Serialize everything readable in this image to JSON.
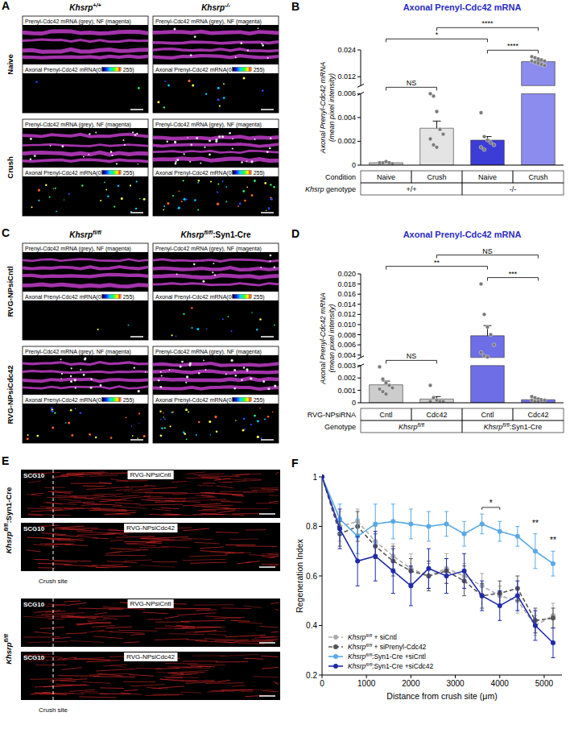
{
  "images": [
    {
      "panel": "A",
      "columns": [
        "Khsrp+/+",
        "Khsrp-/-"
      ],
      "rows": [
        "Naive",
        "Crush"
      ],
      "top_label": "Prenyl-Cdc42 mRNA (grey), NF (magenta)",
      "bottom_label": "Axonal Prenyl-Cdc42 mRNA(0",
      "bottom_label_end": "255)"
    },
    {
      "panel": "C",
      "columns": [
        "Khsrpfl/fl",
        "Khsrpfl/fl:Syn1-Cre"
      ],
      "rows": [
        "RVG-NPsiCntl",
        "RVG-NPsiCdc42"
      ],
      "top_label": "Prenyl-Cdc42 mRNA (grey), NF (magenta)",
      "bottom_label": "Axonal Prenyl-Cdc42 mRNA(0",
      "bottom_label_end": "255)"
    },
    {
      "panel": "E",
      "groups": [
        "Khsrpfl/fl:Syn1-Cre",
        "Khsrpfl/fl"
      ],
      "rows": [
        "RVG-NPsiCntl",
        "RVG-NPsiCdc42"
      ],
      "stain": "SCG10",
      "marker_label": "Crush site"
    }
  ],
  "chart_data": [
    {
      "type": "bar",
      "panel": "B",
      "title": "Axonal Prenyl-Cdc42 mRNA",
      "ylabel": "Axonal Prenyl-Cdc42 mRNA",
      "ylabel_note": "(mean pixel intensity)",
      "categories": [
        "Naive",
        "Crush",
        "Naive",
        "Crush"
      ],
      "category_row_label": "Condition",
      "group_row_label": "Khsrp genotype",
      "groups": [
        "+/+",
        "-/-"
      ],
      "values": [
        0.0002,
        0.0031,
        0.0021,
        0.0188
      ],
      "errors": [
        0.0001,
        0.0006,
        0.0003,
        0.0004
      ],
      "points": [
        [
          0.0001,
          0.0002,
          0.0003,
          0.0002,
          0.0001,
          0.0002
        ],
        [
          0.006,
          0.0058,
          0.0045,
          0.003,
          0.0026,
          0.0022,
          0.0017,
          0.0015
        ],
        [
          0.0044,
          0.0024,
          0.0021,
          0.0019,
          0.0017,
          0.0015,
          0.0013
        ],
        [
          0.021,
          0.0205,
          0.02,
          0.0195,
          0.019,
          0.019,
          0.0185,
          0.018,
          0.0175,
          0.017
        ]
      ],
      "colors": [
        "#cccccc",
        "#e4e4e4",
        "#3c3cd6",
        "#8c8cee"
      ],
      "ylim": [
        0,
        0.024
      ],
      "y_break": [
        0.006,
        0.008
      ],
      "yticks": [
        0,
        0.002,
        0.004,
        0.006,
        0.012,
        0.024
      ],
      "annotations": [
        {
          "text": "NS",
          "from": 0,
          "to": 1
        },
        {
          "text": "****",
          "from": 2,
          "to": 3
        },
        {
          "text": "*",
          "from": 0,
          "to": 2
        },
        {
          "text": "****",
          "from": 1,
          "to": 3
        }
      ]
    },
    {
      "type": "bar",
      "panel": "D",
      "title": "Axonal Prenyl-Cdc42 mRNA",
      "ylabel": "Axonal Prenyl-Cdc42 mRNA",
      "ylabel_note": "(mean pixel intensity)",
      "categories": [
        "Cntl",
        "Cdc42",
        "Cntl",
        "Cdc42"
      ],
      "category_row_label": "RVG-NPsiRNA",
      "group_row_label": "Genotype",
      "groups": [
        "Khsrpfl/fl",
        "Khsrpfl/fl:Syn1-Cre"
      ],
      "values": [
        0.00145,
        0.0003,
        0.0078,
        0.00025
      ],
      "errors": [
        0.0003,
        0.0002,
        0.002,
        0.0001
      ],
      "points": [
        [
          0.0029,
          0.0019,
          0.0016,
          0.0014,
          0.0012,
          0.0011,
          0.0009,
          0.0007
        ],
        [
          0.0014,
          0.0004,
          0.0002,
          0.0001,
          0.0001,
          0.0001
        ],
        [
          0.018,
          0.012,
          0.0095,
          0.008,
          0.006,
          0.0045,
          0.0038,
          0.0036
        ],
        [
          0.0005,
          0.0004,
          0.0003,
          0.0002,
          0.0002,
          0.0002,
          0.0001,
          0.0001
        ]
      ],
      "colors": [
        "#cccccc",
        "#cccccc",
        "#6e6ee6",
        "#6e6ee6"
      ],
      "ylim": [
        0,
        0.02
      ],
      "y_break": [
        0.003,
        0.0035
      ],
      "yticks": [
        0,
        0.001,
        0.002,
        0.003,
        0.004,
        0.006,
        0.008,
        {
          "value": 0.01,
          "label": "0.010"
        },
        0.012,
        0.014,
        0.016,
        0.018,
        {
          "value": 0.02,
          "label": "0.020"
        }
      ],
      "annotations": [
        {
          "text": "NS",
          "from": 0,
          "to": 1
        },
        {
          "text": "***",
          "from": 2,
          "to": 3
        },
        {
          "text": "**",
          "from": 0,
          "to": 2
        },
        {
          "text": "NS",
          "from": 1,
          "to": 3
        }
      ]
    },
    {
      "type": "line",
      "panel": "F",
      "xlabel": "Distance from crush site (μm)",
      "ylabel": "Regeneration Index",
      "x": [
        0,
        400,
        800,
        1200,
        1600,
        2000,
        2400,
        2800,
        3200,
        3600,
        4000,
        4400,
        4800,
        5200
      ],
      "series": [
        {
          "name": "Khsrpfl/fl + siCntl",
          "color": "#aaaaaa",
          "line_style": "dashed",
          "marker": "circle",
          "values": [
            1,
            0.8,
            0.82,
            0.74,
            0.68,
            0.63,
            0.6,
            0.63,
            0.6,
            0.56,
            0.52,
            0.5,
            0.4,
            0.44
          ],
          "errors": [
            0,
            0.06,
            0.05,
            0.06,
            0.05,
            0.06,
            0.05,
            0.06,
            0.05,
            0.05,
            0.04,
            0.05,
            0.04,
            0.05
          ]
        },
        {
          "name": "Khsrpfl/fl + siPrenyl-Cdc42",
          "color": "#555555",
          "line_style": "dashed",
          "marker": "circle",
          "values": [
            1,
            0.77,
            0.8,
            0.72,
            0.66,
            0.62,
            0.6,
            0.62,
            0.58,
            0.52,
            0.53,
            0.55,
            0.42,
            0.43
          ],
          "errors": [
            0,
            0.05,
            0.06,
            0.05,
            0.06,
            0.05,
            0.06,
            0.05,
            0.06,
            0.05,
            0.05,
            0.05,
            0.05,
            0.04
          ]
        },
        {
          "name": "Khsrpfl/fl:Syn1-Cre +siCntl",
          "color": "#5aa9e6",
          "line_style": "solid",
          "marker": "circle",
          "values": [
            1,
            0.83,
            0.76,
            0.81,
            0.82,
            0.81,
            0.8,
            0.81,
            0.77,
            0.81,
            0.78,
            0.76,
            0.7,
            0.65
          ],
          "errors": [
            0,
            0.06,
            0.07,
            0.08,
            0.07,
            0.06,
            0.06,
            0.05,
            0.05,
            0.04,
            0.04,
            0.04,
            0.07,
            0.05
          ]
        },
        {
          "name": "Khsrpfl/fl:Syn1-Cre +siCdc42",
          "color": "#1f2aa8",
          "line_style": "solid",
          "marker": "circle",
          "values": [
            1,
            0.79,
            0.66,
            0.68,
            0.62,
            0.56,
            0.63,
            0.6,
            0.62,
            0.52,
            0.48,
            0.52,
            0.4,
            0.33
          ],
          "errors": [
            0,
            0.08,
            0.1,
            0.1,
            0.09,
            0.08,
            0.08,
            0.07,
            0.07,
            0.06,
            0.06,
            0.06,
            0.06,
            0.06
          ]
        }
      ],
      "xlim": [
        0,
        5400
      ],
      "xticks": [
        0,
        1000,
        2000,
        3000,
        4000,
        5000
      ],
      "ylim": [
        0.2,
        1
      ],
      "yticks": [
        0.2,
        0.4,
        0.6,
        0.8,
        1
      ],
      "legend": "lower left",
      "annotations": [
        {
          "text": "*",
          "x": [
            3600,
            4000
          ],
          "y": 0.88
        },
        {
          "text": "**",
          "x": [
            4800
          ],
          "y": 0.8
        },
        {
          "text": "**",
          "x": [
            5200
          ],
          "y": 0.73
        }
      ]
    }
  ]
}
